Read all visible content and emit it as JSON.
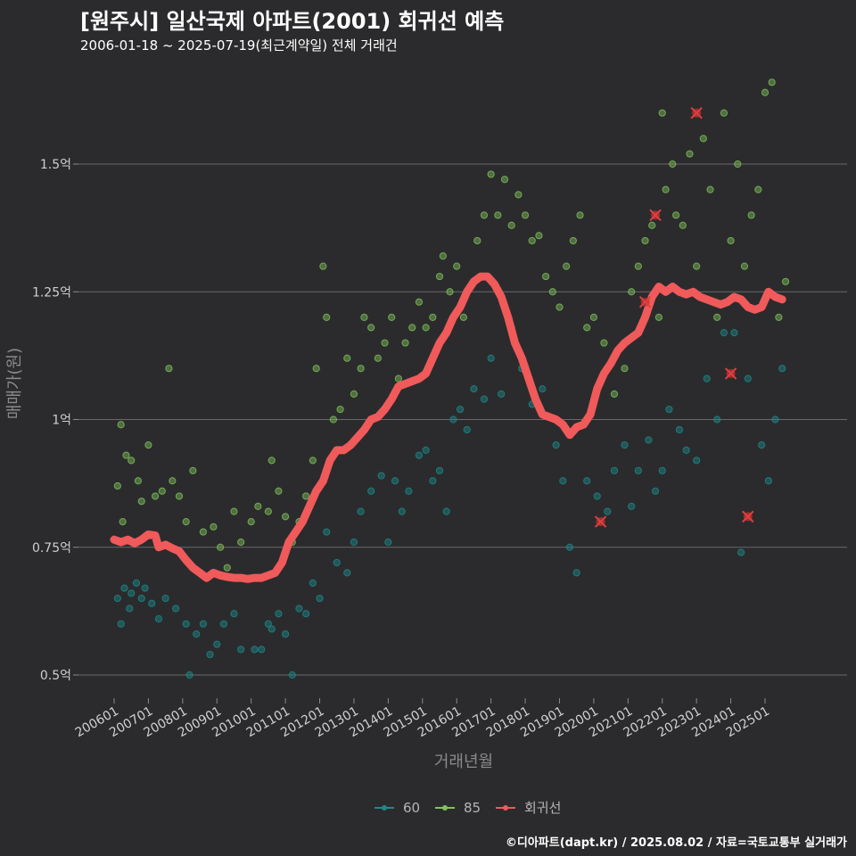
{
  "title": "[원주시] 일산국제 아파트(2001) 회귀선 예측",
  "subtitle": "2006-01-18 ~ 2025-07-19(최근계약일) 전체 거래건",
  "credit": "©디아파트(dapt.kr) / 2025.08.02 / 자료=국토교통부 실거래가",
  "chart_data": {
    "type": "scatter",
    "xlabel": "거래년월",
    "ylabel": "매매가(원)",
    "x_ticks": [
      "200601",
      "200701",
      "200801",
      "200901",
      "201001",
      "201101",
      "201201",
      "201301",
      "201401",
      "201501",
      "201601",
      "201701",
      "201801",
      "201901",
      "202001",
      "202101",
      "202201",
      "202301",
      "202401",
      "202501"
    ],
    "y_ticks": [
      {
        "value": 0.5,
        "label": "0.5억"
      },
      {
        "value": 0.75,
        "label": "0.75억"
      },
      {
        "value": 1.0,
        "label": "1억"
      },
      {
        "value": 1.25,
        "label": "1.25억"
      },
      {
        "value": 1.5,
        "label": "1.5억"
      }
    ],
    "xlim": [
      2005.6,
      2025.9
    ],
    "ylim": [
      0.44,
      1.7
    ],
    "grid": true,
    "legend": "bottom",
    "series": [
      {
        "name": "60",
        "color": "#1d8a8a",
        "points": [
          [
            2006.1,
            0.65
          ],
          [
            2006.2,
            0.6
          ],
          [
            2006.3,
            0.67
          ],
          [
            2006.45,
            0.63
          ],
          [
            2006.5,
            0.66
          ],
          [
            2006.65,
            0.68
          ],
          [
            2006.8,
            0.65
          ],
          [
            2006.9,
            0.67
          ],
          [
            2007.1,
            0.64
          ],
          [
            2007.3,
            0.61
          ],
          [
            2007.5,
            0.65
          ],
          [
            2007.8,
            0.63
          ],
          [
            2008.1,
            0.6
          ],
          [
            2008.2,
            0.5
          ],
          [
            2008.4,
            0.58
          ],
          [
            2008.6,
            0.6
          ],
          [
            2008.8,
            0.54
          ],
          [
            2009.0,
            0.56
          ],
          [
            2009.2,
            0.6
          ],
          [
            2009.5,
            0.62
          ],
          [
            2009.7,
            0.55
          ],
          [
            2010.1,
            0.55
          ],
          [
            2010.3,
            0.55
          ],
          [
            2010.5,
            0.6
          ],
          [
            2010.6,
            0.59
          ],
          [
            2010.8,
            0.62
          ],
          [
            2011.0,
            0.58
          ],
          [
            2011.2,
            0.5
          ],
          [
            2011.4,
            0.63
          ],
          [
            2011.6,
            0.62
          ],
          [
            2011.8,
            0.68
          ],
          [
            2012.0,
            0.65
          ],
          [
            2012.2,
            0.78
          ],
          [
            2012.5,
            0.72
          ],
          [
            2012.8,
            0.7
          ],
          [
            2013.0,
            0.76
          ],
          [
            2013.2,
            0.82
          ],
          [
            2013.5,
            0.86
          ],
          [
            2013.8,
            0.89
          ],
          [
            2014.0,
            0.76
          ],
          [
            2014.2,
            0.88
          ],
          [
            2014.4,
            0.82
          ],
          [
            2014.6,
            0.86
          ],
          [
            2014.9,
            0.93
          ],
          [
            2015.1,
            0.94
          ],
          [
            2015.3,
            0.88
          ],
          [
            2015.5,
            0.9
          ],
          [
            2015.7,
            0.82
          ],
          [
            2015.9,
            1.0
          ],
          [
            2016.1,
            1.02
          ],
          [
            2016.3,
            0.98
          ],
          [
            2016.5,
            1.06
          ],
          [
            2016.8,
            1.04
          ],
          [
            2017.0,
            1.12
          ],
          [
            2017.3,
            1.05
          ],
          [
            2017.6,
            1.18
          ],
          [
            2017.9,
            1.1
          ],
          [
            2018.2,
            1.03
          ],
          [
            2018.5,
            1.06
          ],
          [
            2018.9,
            0.95
          ],
          [
            2019.1,
            0.88
          ],
          [
            2019.3,
            0.75
          ],
          [
            2019.5,
            0.7
          ],
          [
            2019.8,
            0.88
          ],
          [
            2020.1,
            0.85
          ],
          [
            2020.4,
            0.82
          ],
          [
            2020.6,
            0.9
          ],
          [
            2020.9,
            0.95
          ],
          [
            2021.1,
            0.83
          ],
          [
            2021.3,
            0.9
          ],
          [
            2021.6,
            0.96
          ],
          [
            2021.8,
            0.86
          ],
          [
            2022.0,
            0.9
          ],
          [
            2022.2,
            1.02
          ],
          [
            2022.5,
            0.98
          ],
          [
            2022.7,
            0.94
          ],
          [
            2023.0,
            0.92
          ],
          [
            2023.3,
            1.08
          ],
          [
            2023.6,
            1.0
          ],
          [
            2023.8,
            1.17
          ],
          [
            2024.1,
            1.17
          ],
          [
            2024.3,
            0.74
          ],
          [
            2024.5,
            1.08
          ],
          [
            2024.9,
            0.95
          ],
          [
            2025.1,
            0.88
          ],
          [
            2025.3,
            1.0
          ],
          [
            2025.5,
            1.1
          ]
        ]
      },
      {
        "name": "85",
        "color": "#7fc25a",
        "points": [
          [
            2006.1,
            0.87
          ],
          [
            2006.2,
            0.99
          ],
          [
            2006.25,
            0.8
          ],
          [
            2006.35,
            0.93
          ],
          [
            2006.5,
            0.92
          ],
          [
            2006.7,
            0.88
          ],
          [
            2006.8,
            0.84
          ],
          [
            2007.0,
            0.95
          ],
          [
            2007.2,
            0.85
          ],
          [
            2007.4,
            0.86
          ],
          [
            2007.6,
            1.1
          ],
          [
            2007.7,
            0.88
          ],
          [
            2007.9,
            0.85
          ],
          [
            2008.1,
            0.8
          ],
          [
            2008.3,
            0.9
          ],
          [
            2008.6,
            0.78
          ],
          [
            2008.9,
            0.79
          ],
          [
            2009.1,
            0.75
          ],
          [
            2009.3,
            0.71
          ],
          [
            2009.5,
            0.82
          ],
          [
            2009.7,
            0.76
          ],
          [
            2010.0,
            0.8
          ],
          [
            2010.2,
            0.83
          ],
          [
            2010.5,
            0.82
          ],
          [
            2010.6,
            0.92
          ],
          [
            2010.8,
            0.86
          ],
          [
            2011.0,
            0.81
          ],
          [
            2011.2,
            0.76
          ],
          [
            2011.4,
            0.8
          ],
          [
            2011.6,
            0.85
          ],
          [
            2011.8,
            0.92
          ],
          [
            2011.9,
            1.1
          ],
          [
            2012.1,
            1.3
          ],
          [
            2012.2,
            1.2
          ],
          [
            2012.4,
            1.0
          ],
          [
            2012.6,
            1.02
          ],
          [
            2012.8,
            1.12
          ],
          [
            2013.0,
            1.05
          ],
          [
            2013.2,
            1.1
          ],
          [
            2013.3,
            1.2
          ],
          [
            2013.5,
            1.18
          ],
          [
            2013.7,
            1.12
          ],
          [
            2013.9,
            1.15
          ],
          [
            2014.1,
            1.2
          ],
          [
            2014.3,
            1.08
          ],
          [
            2014.5,
            1.15
          ],
          [
            2014.7,
            1.18
          ],
          [
            2014.9,
            1.23
          ],
          [
            2015.1,
            1.18
          ],
          [
            2015.3,
            1.2
          ],
          [
            2015.5,
            1.28
          ],
          [
            2015.6,
            1.32
          ],
          [
            2015.8,
            1.25
          ],
          [
            2016.0,
            1.3
          ],
          [
            2016.2,
            1.2
          ],
          [
            2016.4,
            1.26
          ],
          [
            2016.6,
            1.35
          ],
          [
            2016.8,
            1.4
          ],
          [
            2017.0,
            1.48
          ],
          [
            2017.2,
            1.4
          ],
          [
            2017.4,
            1.47
          ],
          [
            2017.6,
            1.38
          ],
          [
            2017.8,
            1.44
          ],
          [
            2018.0,
            1.4
          ],
          [
            2018.2,
            1.35
          ],
          [
            2018.4,
            1.36
          ],
          [
            2018.6,
            1.28
          ],
          [
            2018.8,
            1.25
          ],
          [
            2019.0,
            1.22
          ],
          [
            2019.2,
            1.3
          ],
          [
            2019.4,
            1.35
          ],
          [
            2019.6,
            1.4
          ],
          [
            2019.8,
            1.18
          ],
          [
            2020.0,
            1.2
          ],
          [
            2020.3,
            1.15
          ],
          [
            2020.6,
            1.05
          ],
          [
            2020.9,
            1.1
          ],
          [
            2021.1,
            1.25
          ],
          [
            2021.3,
            1.3
          ],
          [
            2021.5,
            1.35
          ],
          [
            2021.7,
            1.38
          ],
          [
            2021.9,
            1.2
          ],
          [
            2022.0,
            1.6
          ],
          [
            2022.1,
            1.45
          ],
          [
            2022.3,
            1.5
          ],
          [
            2022.4,
            1.4
          ],
          [
            2022.6,
            1.38
          ],
          [
            2022.8,
            1.52
          ],
          [
            2023.0,
            1.3
          ],
          [
            2023.2,
            1.55
          ],
          [
            2023.4,
            1.45
          ],
          [
            2023.6,
            1.2
          ],
          [
            2023.8,
            1.6
          ],
          [
            2024.0,
            1.35
          ],
          [
            2024.2,
            1.5
          ],
          [
            2024.4,
            1.3
          ],
          [
            2024.6,
            1.4
          ],
          [
            2024.8,
            1.45
          ],
          [
            2025.0,
            1.64
          ],
          [
            2025.2,
            1.66
          ],
          [
            2025.4,
            1.2
          ],
          [
            2025.6,
            1.27
          ]
        ]
      },
      {
        "name": "회귀선",
        "color": "#f05a5a",
        "points": [
          [
            2006.0,
            0.765
          ],
          [
            2006.2,
            0.76
          ],
          [
            2006.4,
            0.765
          ],
          [
            2006.6,
            0.758
          ],
          [
            2006.8,
            0.765
          ],
          [
            2007.0,
            0.775
          ],
          [
            2007.2,
            0.773
          ],
          [
            2007.3,
            0.75
          ],
          [
            2007.5,
            0.755
          ],
          [
            2007.7,
            0.748
          ],
          [
            2007.9,
            0.742
          ],
          [
            2008.1,
            0.725
          ],
          [
            2008.3,
            0.71
          ],
          [
            2008.5,
            0.7
          ],
          [
            2008.7,
            0.69
          ],
          [
            2008.9,
            0.7
          ],
          [
            2009.1,
            0.695
          ],
          [
            2009.3,
            0.692
          ],
          [
            2009.5,
            0.69
          ],
          [
            2009.7,
            0.69
          ],
          [
            2009.9,
            0.688
          ],
          [
            2010.1,
            0.69
          ],
          [
            2010.3,
            0.69
          ],
          [
            2010.5,
            0.695
          ],
          [
            2010.7,
            0.7
          ],
          [
            2010.9,
            0.72
          ],
          [
            2011.1,
            0.76
          ],
          [
            2011.3,
            0.78
          ],
          [
            2011.5,
            0.8
          ],
          [
            2011.7,
            0.83
          ],
          [
            2011.9,
            0.86
          ],
          [
            2012.1,
            0.88
          ],
          [
            2012.3,
            0.92
          ],
          [
            2012.5,
            0.94
          ],
          [
            2012.7,
            0.94
          ],
          [
            2012.9,
            0.95
          ],
          [
            2013.1,
            0.965
          ],
          [
            2013.3,
            0.98
          ],
          [
            2013.5,
            1.0
          ],
          [
            2013.7,
            1.005
          ],
          [
            2013.9,
            1.02
          ],
          [
            2014.1,
            1.04
          ],
          [
            2014.3,
            1.065
          ],
          [
            2014.5,
            1.07
          ],
          [
            2014.7,
            1.075
          ],
          [
            2014.9,
            1.08
          ],
          [
            2015.1,
            1.09
          ],
          [
            2015.3,
            1.12
          ],
          [
            2015.5,
            1.15
          ],
          [
            2015.7,
            1.17
          ],
          [
            2015.9,
            1.2
          ],
          [
            2016.1,
            1.22
          ],
          [
            2016.3,
            1.25
          ],
          [
            2016.5,
            1.27
          ],
          [
            2016.7,
            1.28
          ],
          [
            2016.9,
            1.28
          ],
          [
            2017.1,
            1.265
          ],
          [
            2017.3,
            1.24
          ],
          [
            2017.5,
            1.2
          ],
          [
            2017.7,
            1.15
          ],
          [
            2017.9,
            1.12
          ],
          [
            2018.1,
            1.08
          ],
          [
            2018.3,
            1.04
          ],
          [
            2018.5,
            1.01
          ],
          [
            2018.7,
            1.005
          ],
          [
            2018.9,
            1.0
          ],
          [
            2019.1,
            0.99
          ],
          [
            2019.3,
            0.97
          ],
          [
            2019.5,
            0.985
          ],
          [
            2019.7,
            0.99
          ],
          [
            2019.9,
            1.01
          ],
          [
            2020.1,
            1.06
          ],
          [
            2020.3,
            1.09
          ],
          [
            2020.5,
            1.11
          ],
          [
            2020.7,
            1.135
          ],
          [
            2020.9,
            1.15
          ],
          [
            2021.1,
            1.16
          ],
          [
            2021.3,
            1.17
          ],
          [
            2021.5,
            1.2
          ],
          [
            2021.7,
            1.24
          ],
          [
            2021.9,
            1.26
          ],
          [
            2022.1,
            1.25
          ],
          [
            2022.3,
            1.26
          ],
          [
            2022.5,
            1.25
          ],
          [
            2022.7,
            1.245
          ],
          [
            2022.9,
            1.25
          ],
          [
            2023.1,
            1.24
          ],
          [
            2023.3,
            1.235
          ],
          [
            2023.5,
            1.23
          ],
          [
            2023.7,
            1.225
          ],
          [
            2023.9,
            1.23
          ],
          [
            2024.1,
            1.24
          ],
          [
            2024.3,
            1.235
          ],
          [
            2024.5,
            1.22
          ],
          [
            2024.7,
            1.215
          ],
          [
            2024.9,
            1.22
          ],
          [
            2025.1,
            1.25
          ],
          [
            2025.3,
            1.24
          ],
          [
            2025.5,
            1.235
          ]
        ]
      }
    ],
    "highlighted": [
      [
        2020.2,
        0.8
      ],
      [
        2021.5,
        1.23
      ],
      [
        2021.8,
        1.4
      ],
      [
        2023.0,
        1.6
      ],
      [
        2024.0,
        1.09
      ],
      [
        2024.5,
        0.81
      ]
    ]
  }
}
